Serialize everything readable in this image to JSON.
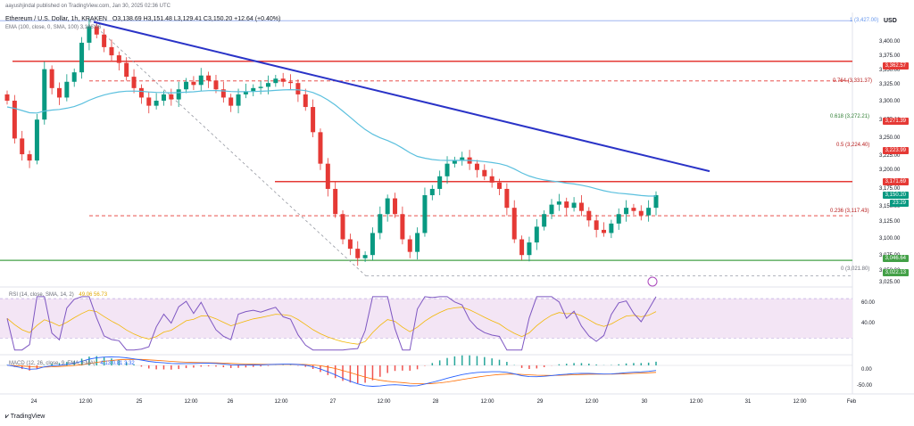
{
  "header": {
    "publisher_line": "aayushjindal published on TradingView.com, Jan 30, 2025 02:36 UTC",
    "symbol_line": "Ethereum / U.S. Dollar, 1h, KRAKEN",
    "ohlc": "O3,138.69  H3,151.48  L3,129.41  C3,150.20  +12.64 (+0.40%)",
    "ema_line": "EMA (100, close, 0, SMA, 100)  3,186.06",
    "currency": "USD"
  },
  "price_axis": {
    "ticks": [
      "3,400.00",
      "3,375.00",
      "3,350.00",
      "3,325.00",
      "3,300.00",
      "3,275.00",
      "3,250.00",
      "3,225.00",
      "3,200.00",
      "3,175.00",
      "3,150.00",
      "3,125.00",
      "3,100.00",
      "3,075.00",
      "3,050.00",
      "3,025.00"
    ],
    "badges": [
      {
        "text": "3,362.57",
        "color": "#e53935"
      },
      {
        "text": "3,271.39",
        "color": "#e53935"
      },
      {
        "text": "3,223.99",
        "color": "#e53935"
      },
      {
        "text": "3,171.69",
        "color": "#e53935"
      },
      {
        "text": "3,150.20",
        "color": "#089981"
      },
      {
        "text": "23:29",
        "color": "#089981"
      },
      {
        "text": "3,046.64",
        "color": "#43a047"
      },
      {
        "text": "3,022.13",
        "color": "#43a047"
      }
    ]
  },
  "fib_levels": [
    {
      "label": "1 (3,427.00)",
      "color": "#6495ed"
    },
    {
      "label": "0.764 (3,331.37)",
      "color": "#b71c1c"
    },
    {
      "label": "0.618 (3,272.21)",
      "color": "#2e7d32"
    },
    {
      "label": "0.5 (3,224.40)",
      "color": "#b71c1c"
    },
    {
      "label": "0.236 (3,117.43)",
      "color": "#b71c1c"
    },
    {
      "label": "0 (3,021.80)",
      "color": "#6a6d78"
    }
  ],
  "rsi": {
    "legend": "RSI (14, close, SMA, 14, 2)",
    "values_text": "49.06  56.73",
    "ticks": [
      "60.00",
      "40.00"
    ]
  },
  "macd": {
    "legend": "MACD (12, 26, close, 9, EMA, EMA)",
    "values_text": "4.13  0.81  3.32",
    "ticks": [
      "0.00",
      "-50.00"
    ]
  },
  "time_axis": [
    "24",
    "12:00",
    "25",
    "12:00",
    "26",
    "12:00",
    "27",
    "12:00",
    "28",
    "12:00",
    "29",
    "12:00",
    "30",
    "12:00",
    "31",
    "12:00",
    "Feb"
  ],
  "footer": {
    "brand": "TradingView"
  },
  "chart_data": {
    "type": "candlestick",
    "symbol": "Ethereum / U.S. Dollar",
    "interval": "1h",
    "exchange": "KRAKEN",
    "ylim": [
      3010,
      3440
    ],
    "x": [
      "24",
      "12:00",
      "25",
      "12:00",
      "26",
      "12:00",
      "27",
      "12:00",
      "28",
      "12:00",
      "29",
      "12:00",
      "30",
      "12:00",
      "31",
      "12:00",
      "Feb"
    ],
    "closes": [
      3300,
      3240,
      3215,
      3205,
      3270,
      3350,
      3320,
      3305,
      3330,
      3345,
      3392,
      3418,
      3405,
      3385,
      3372,
      3360,
      3338,
      3320,
      3305,
      3292,
      3300,
      3310,
      3302,
      3318,
      3330,
      3325,
      3340,
      3332,
      3318,
      3305,
      3292,
      3310,
      3315,
      3320,
      3322,
      3328,
      3335,
      3330,
      3328,
      3310,
      3290,
      3250,
      3200,
      3160,
      3120,
      3080,
      3065,
      3050,
      3055,
      3090,
      3120,
      3145,
      3120,
      3080,
      3060,
      3090,
      3150,
      3160,
      3180,
      3200,
      3205,
      3210,
      3200,
      3190,
      3180,
      3170,
      3160,
      3130,
      3080,
      3055,
      3075,
      3100,
      3120,
      3135,
      3140,
      3130,
      3138,
      3125,
      3110,
      3095,
      3090,
      3105,
      3120,
      3130,
      3125,
      3118,
      3130,
      3150
    ],
    "ema100_legend": "3,186.06",
    "horizontal_levels": [
      3427.0,
      3362.57,
      3331.37,
      3272.21,
      3271.39,
      3224.4,
      3223.99,
      3171.69,
      3117.43,
      3046.64,
      3022.13,
      3021.8
    ],
    "trendline": "descending, from ~3,425 (Jan 24 12:00) to ~3,188 (Jan 30 18:00)",
    "last_close": 3150.2,
    "change": "+12.64 (+0.40%)"
  },
  "colors": {
    "up": "#089981",
    "down": "#e53935",
    "ema": "#5bc0de",
    "trend": "#2a33c7",
    "resistance": "#e53935",
    "support": "#43a047",
    "rsi_band": "#f3e5f5",
    "rsi_line": "#7e57c2"
  }
}
